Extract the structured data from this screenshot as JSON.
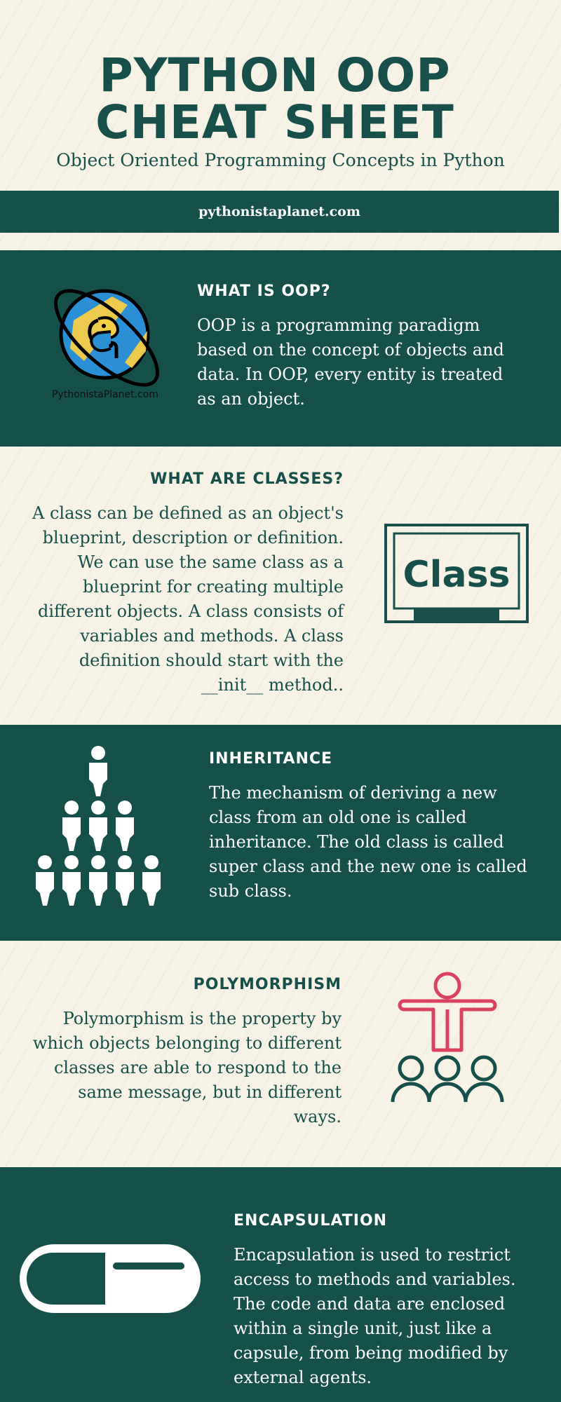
{
  "header": {
    "title_line1": "PYTHON  OOP",
    "title_line2": "CHEAT SHEET",
    "subtitle": "Object Oriented Programming Concepts in Python"
  },
  "banner": {
    "website": "pythonistaplanet.com"
  },
  "sections": [
    {
      "heading": "WHAT IS OOP?",
      "body": "OOP is a programming paradigm based on the concept of objects and data. In OOP, every entity is treated as an object.",
      "logo_text": "PythonistaPlanet.com",
      "icon": "globe-python-logo-icon"
    },
    {
      "heading": "WHAT ARE CLASSES?",
      "body": "A class can be defined as an object's blueprint, description or definition. We can use the same class as a blueprint for creating multiple different objects. A class consists of variables and methods. A class definition should start with the __init__ method..",
      "board_text": "Class",
      "icon": "chalkboard-icon"
    },
    {
      "heading": "INHERITANCE",
      "body": "The mechanism of deriving a new class from an old one is called inheritance. The old class is called super class and the new one is called sub class.",
      "icon": "people-hierarchy-icon"
    },
    {
      "heading": "POLYMORPHISM",
      "body": "Polymorphism is the property by which objects belonging to different classes are able to respond to the same message, but in different ways.",
      "icon": "presenter-group-icon"
    },
    {
      "heading": "ENCAPSULATION",
      "body": "Encapsulation is used to restrict access to methods and variables. The code and data are enclosed within a single unit, just like a capsule, from being modified by external agents.",
      "icon": "capsule-icon"
    }
  ],
  "colors": {
    "dark_green": "#15514a",
    "cream": "#f6f2e6",
    "accent_red": "#d9435f",
    "logo_blue": "#2b8fd6",
    "logo_yellow": "#f5cd47"
  }
}
